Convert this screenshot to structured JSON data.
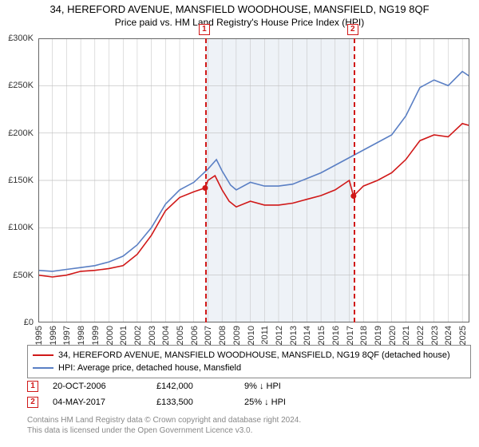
{
  "title": "34, HEREFORD AVENUE, MANSFIELD WOODHOUSE, MANSFIELD, NG19 8QF",
  "subtitle": "Price paid vs. HM Land Registry's House Price Index (HPI)",
  "chart": {
    "type": "line",
    "background_color": "#ffffff",
    "plot_border_color": "#666666",
    "grid_color": "#bfbfbf",
    "marker_band_color": "#eef2f7",
    "xlim": [
      1995,
      2025.5
    ],
    "ylim": [
      0,
      300000
    ],
    "ylabel_prefix": "£",
    "ylabel_suffix": "K",
    "ytick_step": 50000,
    "yticks": [
      0,
      50000,
      100000,
      150000,
      200000,
      250000,
      300000
    ],
    "yticklabels": [
      "£0",
      "£50K",
      "£100K",
      "£150K",
      "£200K",
      "£250K",
      "£300K"
    ],
    "xticks": [
      1995,
      1996,
      1997,
      1998,
      1999,
      2000,
      2001,
      2002,
      2003,
      2004,
      2005,
      2006,
      2007,
      2008,
      2009,
      2010,
      2011,
      2012,
      2013,
      2014,
      2015,
      2016,
      2017,
      2018,
      2019,
      2020,
      2021,
      2022,
      2023,
      2024,
      2025
    ],
    "label_fontsize": 11,
    "title_fontsize": 13,
    "line_width": 1.6,
    "markers": [
      {
        "id": "1",
        "year": 2006.8,
        "color": "#d01818"
      },
      {
        "id": "2",
        "year": 2017.3,
        "color": "#d01818"
      }
    ],
    "marker_band": [
      2006.8,
      2017.3
    ],
    "series": [
      {
        "name": "subject",
        "label": "34, HEREFORD AVENUE, MANSFIELD WOODHOUSE, MANSFIELD, NG19 8QF (detached house)",
        "color": "#d01818",
        "points": [
          [
            1995,
            50000
          ],
          [
            1996,
            48000
          ],
          [
            1997,
            50000
          ],
          [
            1998,
            54000
          ],
          [
            1999,
            55000
          ],
          [
            2000,
            57000
          ],
          [
            2001,
            60000
          ],
          [
            2002,
            72000
          ],
          [
            2003,
            92000
          ],
          [
            2004,
            118000
          ],
          [
            2005,
            132000
          ],
          [
            2006,
            138000
          ],
          [
            2006.8,
            142000
          ],
          [
            2007,
            150000
          ],
          [
            2007.5,
            155000
          ],
          [
            2008,
            140000
          ],
          [
            2008.5,
            128000
          ],
          [
            2009,
            122000
          ],
          [
            2010,
            128000
          ],
          [
            2011,
            124000
          ],
          [
            2012,
            124000
          ],
          [
            2013,
            126000
          ],
          [
            2014,
            130000
          ],
          [
            2015,
            134000
          ],
          [
            2016,
            140000
          ],
          [
            2017,
            150000
          ],
          [
            2017.3,
            133500
          ],
          [
            2017.6,
            138000
          ],
          [
            2018,
            144000
          ],
          [
            2019,
            150000
          ],
          [
            2020,
            158000
          ],
          [
            2021,
            172000
          ],
          [
            2022,
            192000
          ],
          [
            2023,
            198000
          ],
          [
            2024,
            196000
          ],
          [
            2025,
            210000
          ],
          [
            2025.5,
            208000
          ]
        ]
      },
      {
        "name": "hpi",
        "label": "HPI: Average price, detached house, Mansfield",
        "color": "#5a7fc4",
        "points": [
          [
            1995,
            55000
          ],
          [
            1996,
            54000
          ],
          [
            1997,
            56000
          ],
          [
            1998,
            58000
          ],
          [
            1999,
            60000
          ],
          [
            2000,
            64000
          ],
          [
            2001,
            70000
          ],
          [
            2002,
            82000
          ],
          [
            2003,
            100000
          ],
          [
            2004,
            125000
          ],
          [
            2005,
            140000
          ],
          [
            2006,
            148000
          ],
          [
            2007,
            162000
          ],
          [
            2007.6,
            172000
          ],
          [
            2008,
            160000
          ],
          [
            2008.6,
            145000
          ],
          [
            2009,
            140000
          ],
          [
            2010,
            148000
          ],
          [
            2011,
            144000
          ],
          [
            2012,
            144000
          ],
          [
            2013,
            146000
          ],
          [
            2014,
            152000
          ],
          [
            2015,
            158000
          ],
          [
            2016,
            166000
          ],
          [
            2017,
            174000
          ],
          [
            2018,
            182000
          ],
          [
            2019,
            190000
          ],
          [
            2020,
            198000
          ],
          [
            2021,
            218000
          ],
          [
            2022,
            248000
          ],
          [
            2023,
            256000
          ],
          [
            2024,
            250000
          ],
          [
            2025,
            265000
          ],
          [
            2025.5,
            260000
          ]
        ]
      }
    ]
  },
  "legend": {
    "border_color": "#888888"
  },
  "sales": [
    {
      "id": "1",
      "date": "20-OCT-2006",
      "price": "£142,000",
      "delta": "9% ↓ HPI",
      "color": "#d01818"
    },
    {
      "id": "2",
      "date": "04-MAY-2017",
      "price": "£133,500",
      "delta": "25% ↓ HPI",
      "color": "#d01818"
    }
  ],
  "footer": {
    "line1": "Contains HM Land Registry data © Crown copyright and database right 2024.",
    "line2": "This data is licensed under the Open Government Licence v3.0."
  }
}
